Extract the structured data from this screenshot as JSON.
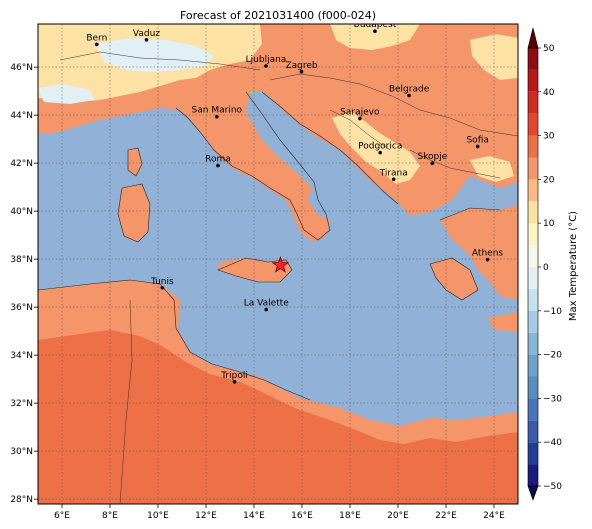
{
  "title": "Forecast of 2021031400 (f000-024)",
  "lon_ticks": [
    "6°E",
    "8°E",
    "10°E",
    "12°E",
    "14°E",
    "16°E",
    "18°E",
    "20°E",
    "22°E",
    "24°E"
  ],
  "lat_ticks": [
    "28°N",
    "30°N",
    "32°N",
    "34°N",
    "36°N",
    "38°N",
    "40°N",
    "42°N",
    "44°N",
    "46°N"
  ],
  "extent": {
    "lon": [
      5,
      25
    ],
    "lat": [
      27.8,
      47.8
    ]
  },
  "colorbar": {
    "label": "Max Temperature (°C)",
    "ticks": [
      "−50",
      "−40",
      "−30",
      "−20",
      "−10",
      "0",
      "10",
      "20",
      "30",
      "40",
      "50"
    ],
    "levels": [
      -50,
      -45,
      -40,
      -35,
      -30,
      -25,
      -20,
      -15,
      -10,
      -5,
      0,
      5,
      10,
      15,
      20,
      25,
      30,
      35,
      40,
      45,
      50
    ],
    "colors": [
      "#1a1a80",
      "#243c9c",
      "#3a5aae",
      "#4a74b8",
      "#5a8cc0",
      "#6f9fca",
      "#88b4d8",
      "#a8cbe4",
      "#c6e1ef",
      "#e2f0f6",
      "#f6f8e8",
      "#fdf5c6",
      "#fde2a6",
      "#fbbb86",
      "#f4956a",
      "#ee7046",
      "#e4472e",
      "#d4291e",
      "#b81617",
      "#8e0c12"
    ],
    "under_color": "#0c0c50",
    "over_color": "#5a0000"
  },
  "fields": {
    "sea": "#91b2d6",
    "warm": "#f4956a",
    "hot": "#ee7046",
    "mild": "#fde2a6",
    "cool": "#e2f0f6"
  },
  "marker": {
    "name": "star",
    "lon": 15.1,
    "lat": 37.75,
    "color": "#ff2020"
  },
  "cities": [
    {
      "name": "Bern",
      "lon": 7.45,
      "lat": 46.95
    },
    {
      "name": "Vaduz",
      "lon": 9.52,
      "lat": 47.14
    },
    {
      "name": "Budapest",
      "lon": 19.04,
      "lat": 47.5
    },
    {
      "name": "Ljubljana",
      "lon": 14.5,
      "lat": 46.05
    },
    {
      "name": "Zagreb",
      "lon": 15.98,
      "lat": 45.81
    },
    {
      "name": "Belgrade",
      "lon": 20.46,
      "lat": 44.82
    },
    {
      "name": "San Marino",
      "lon": 12.45,
      "lat": 43.94
    },
    {
      "name": "Sarajevo",
      "lon": 18.41,
      "lat": 43.86
    },
    {
      "name": "Sofia",
      "lon": 23.32,
      "lat": 42.7
    },
    {
      "name": "Podgorica",
      "lon": 19.26,
      "lat": 42.44
    },
    {
      "name": "Skopje",
      "lon": 21.43,
      "lat": 42.0
    },
    {
      "name": "Roma",
      "lon": 12.5,
      "lat": 41.9
    },
    {
      "name": "Tirana",
      "lon": 19.82,
      "lat": 41.33
    },
    {
      "name": "Athens",
      "lon": 23.73,
      "lat": 37.98
    },
    {
      "name": "Tunis",
      "lon": 10.18,
      "lat": 36.81
    },
    {
      "name": "La Valette",
      "lon": 14.51,
      "lat": 35.9
    },
    {
      "name": "Tripoli",
      "lon": 13.19,
      "lat": 32.89
    }
  ]
}
